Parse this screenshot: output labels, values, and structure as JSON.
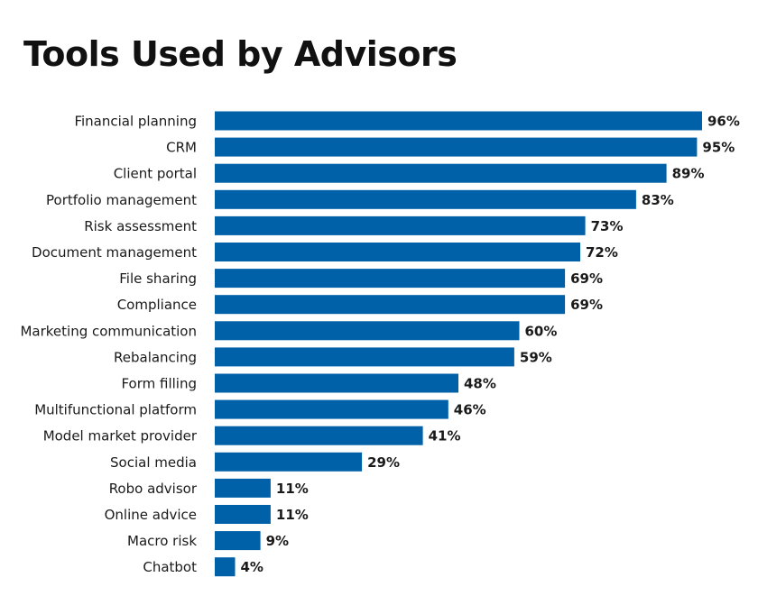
{
  "chart_data": {
    "type": "bar",
    "orientation": "horizontal",
    "title": "Tools Used by Advisors",
    "categories": [
      "Financial planning",
      "CRM",
      "Client portal",
      "Portfolio management",
      "Risk assessment",
      "Document management",
      "File sharing",
      "Compliance",
      "Marketing communication",
      "Rebalancing",
      "Form filling",
      "Multifunctional platform",
      "Model market provider",
      "Social media",
      "Robo advisor",
      "Online advice",
      "Macro risk",
      "Chatbot"
    ],
    "values": [
      96,
      95,
      89,
      83,
      73,
      72,
      69,
      69,
      60,
      59,
      48,
      46,
      41,
      29,
      11,
      11,
      9,
      4
    ],
    "value_labels": [
      "96%",
      "95%",
      "89%",
      "83%",
      "73%",
      "72%",
      "69%",
      "69%",
      "60%",
      "59%",
      "48%",
      "46%",
      "41%",
      "29%",
      "11%",
      "11%",
      "9%",
      "4%"
    ],
    "xlabel": "",
    "ylabel": "",
    "xlim": [
      0,
      100
    ],
    "grid": false,
    "legend": "none",
    "bar_color": "#0060a8"
  }
}
